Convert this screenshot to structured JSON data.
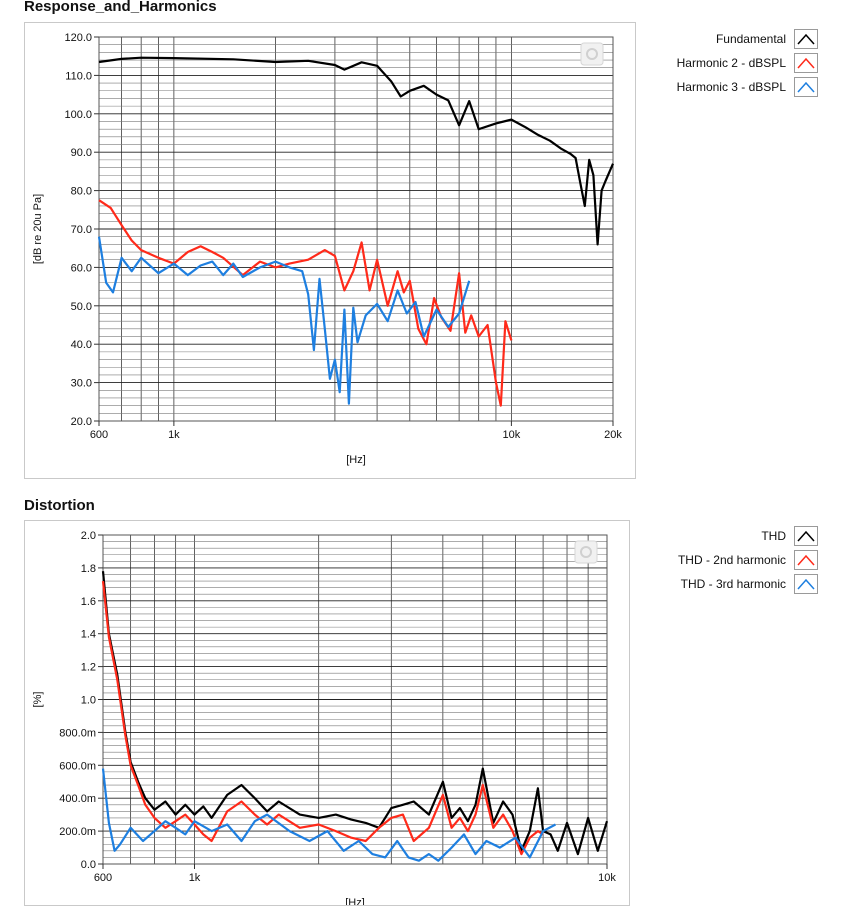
{
  "panels": [
    {
      "title": "Response_and_Harmonics",
      "legend": [
        {
          "label": "Fundamental",
          "color": "#000000"
        },
        {
          "label": "Harmonic 2 - dBSPL",
          "color": "#ff2a1a"
        },
        {
          "label": "Harmonic 3 - dBSPL",
          "color": "#1e7fe0"
        }
      ]
    },
    {
      "title": "Distortion",
      "legend": [
        {
          "label": "THD",
          "color": "#000000"
        },
        {
          "label": "THD - 2nd harmonic",
          "color": "#ff2a1a"
        },
        {
          "label": "THD - 3rd harmonic",
          "color": "#1e7fe0"
        }
      ]
    }
  ],
  "chart_data": [
    {
      "type": "line",
      "title": "Response_and_Harmonics",
      "xlabel": "[Hz]",
      "ylabel": "[dB re 20u Pa]",
      "xscale": "log",
      "xlim": [
        600,
        20000
      ],
      "ylim": [
        20,
        120
      ],
      "xticks": [
        600,
        1000,
        10000,
        20000
      ],
      "xtick_labels": [
        "600",
        "1k",
        "10k",
        "20k"
      ],
      "yticks": [
        20,
        30,
        40,
        50,
        60,
        70,
        80,
        90,
        100,
        110,
        120
      ],
      "ytick_labels": [
        "20.0",
        "30.0",
        "40.0",
        "50.0",
        "60.0",
        "70.0",
        "80.0",
        "90.0",
        "100.0",
        "110.0",
        "120.0"
      ],
      "grid": true,
      "legend": "right",
      "series": [
        {
          "name": "Fundamental",
          "color": "#000000",
          "x": [
            600,
            700,
            800,
            1000,
            1500,
            2000,
            2500,
            3000,
            3200,
            3600,
            4000,
            4400,
            4700,
            5000,
            5500,
            6000,
            6500,
            7000,
            7500,
            8000,
            9000,
            10000,
            11000,
            12000,
            13000,
            14000,
            15000,
            15500,
            16000,
            16500,
            17000,
            17500,
            18000,
            18500,
            19000,
            20000
          ],
          "y": [
            113.5,
            114.3,
            114.6,
            114.5,
            114.2,
            113.5,
            113.8,
            112.7,
            111.5,
            113.4,
            112.5,
            108.5,
            104.5,
            106.0,
            107.3,
            105.0,
            103.5,
            97.0,
            103.3,
            96.0,
            97.5,
            98.5,
            96.5,
            94.5,
            93.0,
            91.0,
            89.5,
            88.5,
            82.0,
            76.0,
            88.0,
            84.0,
            66.0,
            80.0,
            82.5,
            87.0
          ]
        },
        {
          "name": "Harmonic 2 - dBSPL",
          "color": "#ff2a1a",
          "x": [
            600,
            650,
            700,
            750,
            800,
            900,
            1000,
            1100,
            1200,
            1300,
            1400,
            1600,
            1800,
            2000,
            2200,
            2500,
            2800,
            3000,
            3200,
            3400,
            3600,
            3800,
            4000,
            4300,
            4600,
            4800,
            5000,
            5300,
            5600,
            5900,
            6200,
            6600,
            7000,
            7300,
            7600,
            8000,
            8500,
            9000,
            9300,
            9600,
            10000
          ],
          "y": [
            77.5,
            75.5,
            71.0,
            67.0,
            64.5,
            62.5,
            61.0,
            64.0,
            65.5,
            64.0,
            62.5,
            58.0,
            61.5,
            60.0,
            61.0,
            62.0,
            64.5,
            63.0,
            54.0,
            59.0,
            66.5,
            54.0,
            62.0,
            50.0,
            59.0,
            53.5,
            56.5,
            44.0,
            40.0,
            52.0,
            47.0,
            43.5,
            58.5,
            43.0,
            47.5,
            42.0,
            45.0,
            30.0,
            24.0,
            46.0,
            41.0
          ]
        },
        {
          "name": "Harmonic 3 - dBSPL",
          "color": "#1e7fe0",
          "x": [
            600,
            630,
            660,
            700,
            750,
            800,
            900,
            1000,
            1100,
            1200,
            1300,
            1400,
            1500,
            1600,
            1800,
            2000,
            2200,
            2400,
            2500,
            2600,
            2700,
            2800,
            2900,
            3000,
            3100,
            3200,
            3300,
            3400,
            3500,
            3700,
            4000,
            4300,
            4600,
            4900,
            5200,
            5500,
            6000,
            6500,
            7000,
            7500
          ],
          "y": [
            68.0,
            56.0,
            53.5,
            62.5,
            59.0,
            62.5,
            58.5,
            61.0,
            58.0,
            60.5,
            61.5,
            58.0,
            61.0,
            57.5,
            60.0,
            61.5,
            60.0,
            59.0,
            53.0,
            38.5,
            57.0,
            44.0,
            31.0,
            36.0,
            27.5,
            49.0,
            24.5,
            49.5,
            40.5,
            47.5,
            50.5,
            46.0,
            54.0,
            48.0,
            51.0,
            42.0,
            49.0,
            44.5,
            48.0,
            56.5
          ]
        }
      ]
    },
    {
      "type": "line",
      "title": "Distortion",
      "xlabel": "[Hz]",
      "ylabel": "[%]",
      "xscale": "log",
      "xlim": [
        600,
        10000
      ],
      "ylim": [
        0,
        2
      ],
      "xticks": [
        600,
        1000,
        10000
      ],
      "xtick_labels": [
        "600",
        "1k",
        "10k"
      ],
      "yticks": [
        0,
        0.2,
        0.4,
        0.6,
        0.8,
        1.0,
        1.2,
        1.4,
        1.6,
        1.8,
        2.0
      ],
      "ytick_labels": [
        "0.0",
        "200.0m",
        "400.0m",
        "600.0m",
        "800.0m",
        "1.0",
        "1.2",
        "1.4",
        "1.6",
        "1.8",
        "2.0"
      ],
      "grid": true,
      "legend": "right",
      "series": [
        {
          "name": "THD",
          "color": "#000000",
          "x": [
            600,
            620,
            650,
            680,
            700,
            730,
            760,
            800,
            850,
            900,
            950,
            1000,
            1050,
            1100,
            1200,
            1300,
            1400,
            1500,
            1600,
            1800,
            2000,
            2200,
            2400,
            2600,
            2800,
            3000,
            3200,
            3400,
            3700,
            4000,
            4200,
            4400,
            4600,
            4800,
            5000,
            5300,
            5600,
            5900,
            6200,
            6500,
            6800,
            7000,
            7300,
            7600,
            8000,
            8500,
            9000,
            9500,
            10000
          ],
          "y": [
            1.78,
            1.4,
            1.15,
            0.8,
            0.62,
            0.5,
            0.4,
            0.33,
            0.38,
            0.3,
            0.36,
            0.3,
            0.35,
            0.28,
            0.42,
            0.48,
            0.4,
            0.32,
            0.38,
            0.3,
            0.28,
            0.3,
            0.27,
            0.25,
            0.22,
            0.34,
            0.36,
            0.38,
            0.3,
            0.5,
            0.28,
            0.34,
            0.26,
            0.36,
            0.58,
            0.25,
            0.38,
            0.3,
            0.08,
            0.2,
            0.46,
            0.2,
            0.18,
            0.08,
            0.25,
            0.06,
            0.28,
            0.08,
            0.26
          ]
        },
        {
          "name": "THD - 2nd harmonic",
          "color": "#ff2a1a",
          "x": [
            600,
            620,
            650,
            680,
            700,
            730,
            760,
            800,
            850,
            900,
            950,
            1000,
            1050,
            1100,
            1200,
            1300,
            1400,
            1500,
            1600,
            1800,
            2000,
            2200,
            2400,
            2600,
            2800,
            3000,
            3200,
            3400,
            3700,
            4000,
            4200,
            4400,
            4600,
            4800,
            5000,
            5300,
            5600,
            5900,
            6200,
            6500,
            6800,
            7000
          ],
          "y": [
            1.72,
            1.38,
            1.12,
            0.78,
            0.6,
            0.48,
            0.36,
            0.28,
            0.22,
            0.26,
            0.3,
            0.24,
            0.18,
            0.14,
            0.32,
            0.38,
            0.3,
            0.24,
            0.3,
            0.22,
            0.24,
            0.2,
            0.16,
            0.14,
            0.22,
            0.28,
            0.3,
            0.14,
            0.22,
            0.42,
            0.22,
            0.28,
            0.2,
            0.3,
            0.48,
            0.22,
            0.3,
            0.2,
            0.06,
            0.16,
            0.2,
            0.18
          ]
        },
        {
          "name": "THD - 3rd harmonic",
          "color": "#1e7fe0",
          "x": [
            600,
            620,
            640,
            660,
            700,
            750,
            800,
            850,
            900,
            950,
            1000,
            1100,
            1200,
            1300,
            1400,
            1500,
            1700,
            1900,
            2100,
            2300,
            2500,
            2700,
            2900,
            3100,
            3300,
            3500,
            3700,
            3900,
            4200,
            4500,
            4800,
            5100,
            5500,
            6000,
            6500,
            7000,
            7500
          ],
          "y": [
            0.58,
            0.25,
            0.08,
            0.12,
            0.22,
            0.14,
            0.2,
            0.26,
            0.22,
            0.18,
            0.26,
            0.2,
            0.24,
            0.14,
            0.26,
            0.3,
            0.2,
            0.14,
            0.2,
            0.08,
            0.14,
            0.06,
            0.04,
            0.14,
            0.04,
            0.02,
            0.06,
            0.02,
            0.1,
            0.18,
            0.06,
            0.14,
            0.1,
            0.16,
            0.04,
            0.2,
            0.24
          ]
        }
      ]
    }
  ]
}
